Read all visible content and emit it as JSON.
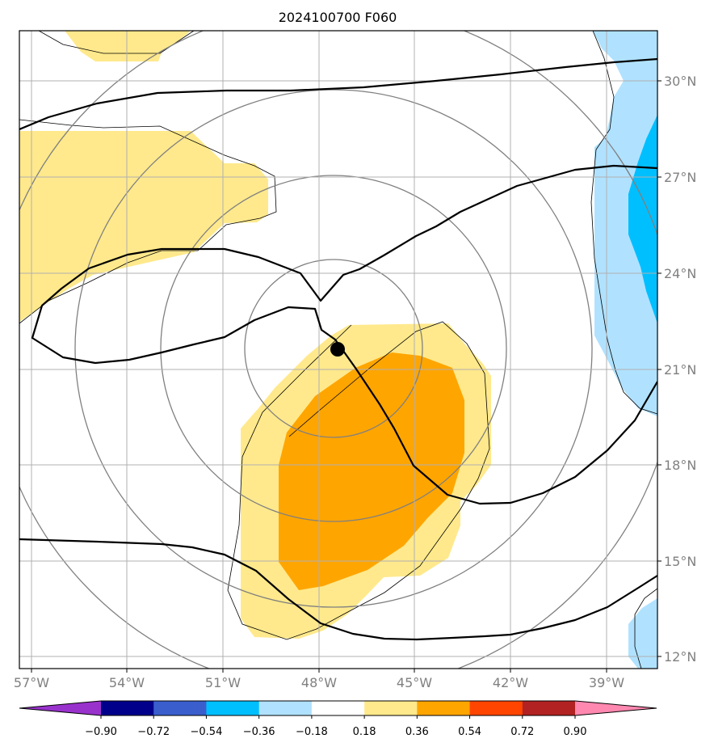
{
  "title": "2024100700 F060",
  "map": {
    "longitude_labels": [
      "57°W",
      "54°W",
      "51°W",
      "48°W",
      "45°W",
      "42°W",
      "39°W"
    ],
    "latitude_labels": [
      "30°N",
      "27°N",
      "24°N",
      "21°N",
      "18°N",
      "15°N",
      "12°N"
    ],
    "gridlines": true,
    "center_marker": {
      "lon": "47.4°W",
      "lat": "21.5°N"
    }
  },
  "colorbar": {
    "tick_labels": [
      "−0.90",
      "−0.72",
      "−0.54",
      "−0.36",
      "−0.18",
      "0.18",
      "0.36",
      "0.54",
      "0.72",
      "0.90"
    ],
    "colors": [
      "#9932cc",
      "#00008b",
      "#3a5fcd",
      "#00bfff",
      "#b0e2ff",
      "#ffffff",
      "#ffe98c",
      "#ffa500",
      "#ff4500",
      "#b22222",
      "#ff88b0"
    ],
    "extend": "both"
  },
  "colors": {
    "light_yellow": "#ffe98c",
    "orange": "#ffa500",
    "light_blue": "#b0e2ff",
    "deep_sky_blue": "#00bfff",
    "grid": "#b0b0b0",
    "range_rings": "#808080",
    "contours": "#000000"
  }
}
